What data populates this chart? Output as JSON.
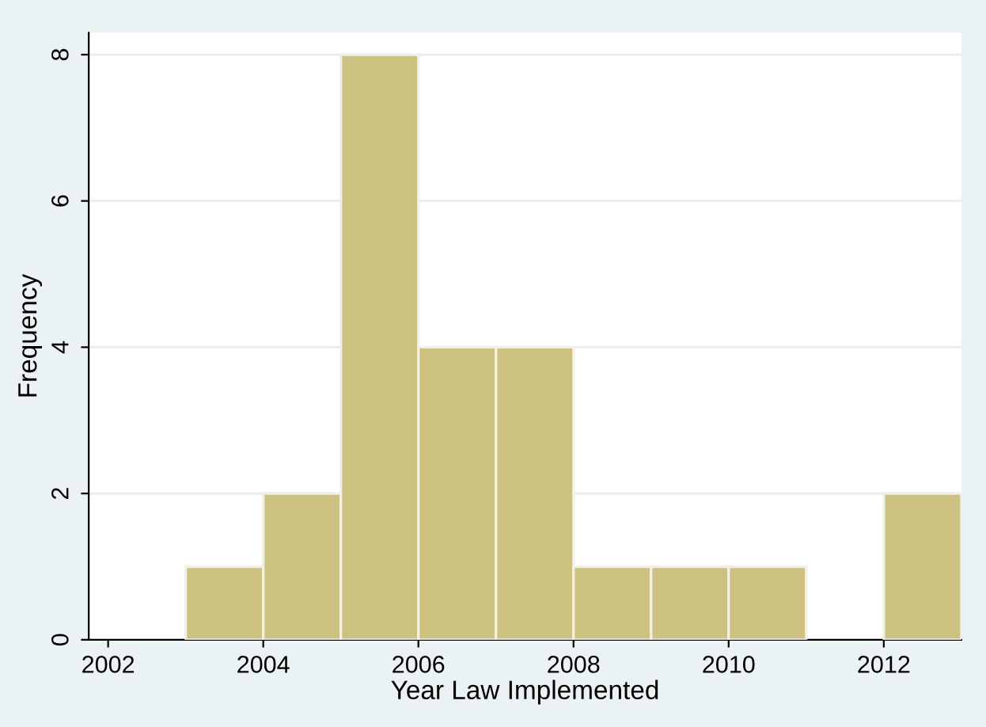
{
  "chart_data": {
    "type": "histogram",
    "xlabel": "Year Law Implemented",
    "ylabel": "Frequency",
    "bins": [
      2003,
      2004,
      2005,
      2006,
      2007,
      2008,
      2009,
      2010,
      2011,
      2012,
      2013
    ],
    "values": [
      1,
      2,
      8,
      4,
      4,
      1,
      1,
      1,
      0,
      2
    ],
    "color": "#cdc181",
    "xlim": [
      2001.75,
      2013
    ],
    "xticks": [
      2002,
      2004,
      2006,
      2008,
      2010,
      2012
    ],
    "ylim": [
      0,
      8.3
    ],
    "yticks": [
      0,
      2,
      4,
      6,
      8
    ],
    "grid": "y"
  }
}
